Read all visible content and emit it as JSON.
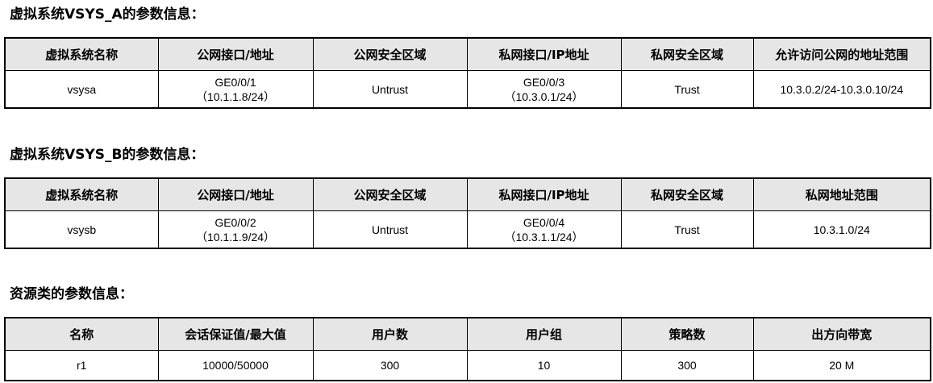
{
  "sections": [
    {
      "title": "虚拟系统VSYS_A的参数信息：",
      "headers": [
        "虚拟系统名称",
        "公网接口/地址",
        "公网安全区域",
        "私网接口/IP地址",
        "私网安全区域",
        "允许访问公网的地址范围"
      ],
      "row": {
        "name": "vsysa",
        "public_if": "GE0/0/1",
        "public_addr": "（10.1.1.8/24）",
        "public_zone": "Untrust",
        "private_if": "GE0/0/3",
        "private_addr": "（10.3.0.1/24）",
        "private_zone": "Trust",
        "range": "10.3.0.2/24-10.3.0.10/24"
      }
    },
    {
      "title": "虚拟系统VSYS_B的参数信息：",
      "headers": [
        "虚拟系统名称",
        "公网接口/地址",
        "公网安全区域",
        "私网接口/IP地址",
        "私网安全区域",
        "私网地址范围"
      ],
      "row": {
        "name": "vsysb",
        "public_if": "GE0/0/2",
        "public_addr": "（10.1.1.9/24）",
        "public_zone": "Untrust",
        "private_if": "GE0/0/4",
        "private_addr": "（10.3.1.1/24）",
        "private_zone": "Trust",
        "range": "10.3.1.0/24"
      }
    },
    {
      "title": "资源类的参数信息：",
      "headers": [
        "名称",
        "会话保证值/最大值",
        "用户数",
        "用户组",
        "策略数",
        "出方向带宽"
      ],
      "row": [
        "r1",
        "10000/50000",
        "300",
        "10",
        "300",
        "20 M"
      ]
    }
  ]
}
